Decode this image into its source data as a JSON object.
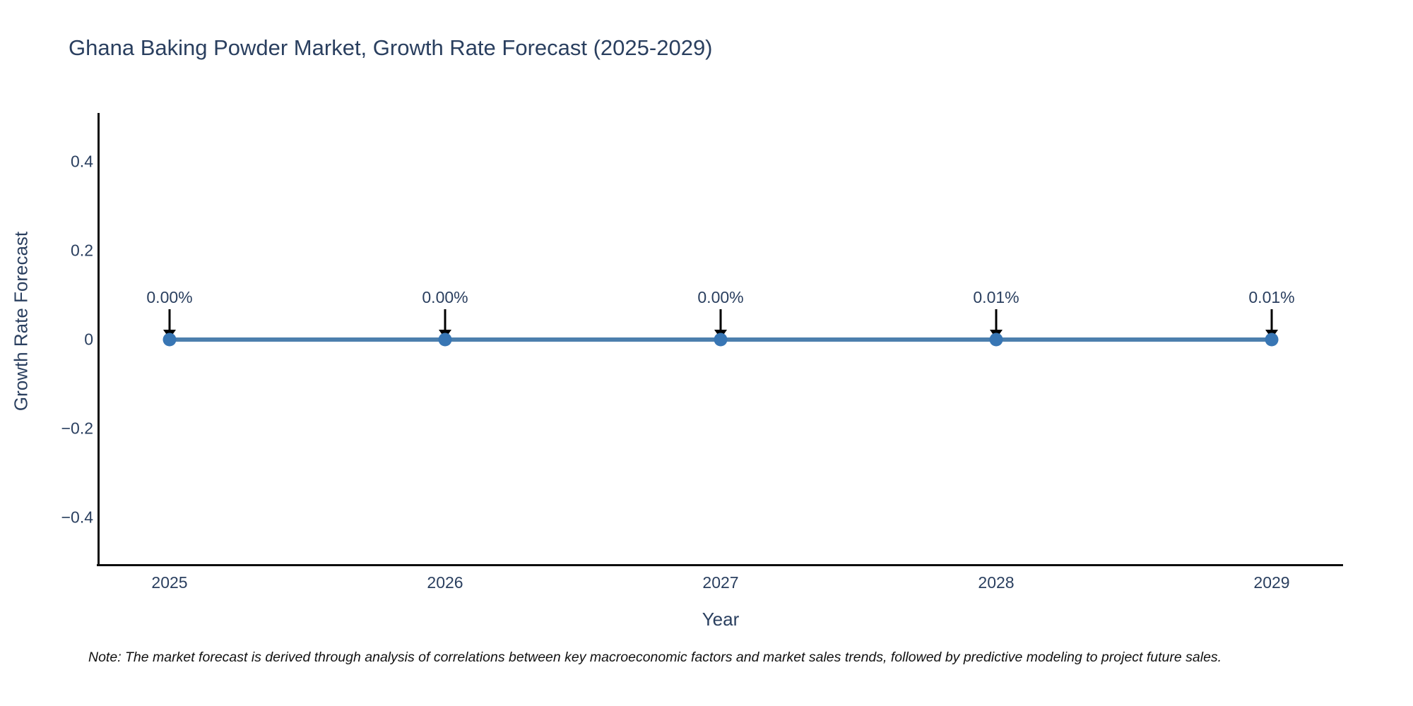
{
  "chart_data": {
    "type": "line",
    "title": "Ghana Baking Powder Market, Growth Rate Forecast (2025-2029)",
    "xlabel": "Year",
    "ylabel": "Growth Rate Forecast",
    "categories": [
      "2025",
      "2026",
      "2027",
      "2028",
      "2029"
    ],
    "series": [
      {
        "name": "Growth Rate Forecast",
        "values": [
          0.0,
          0.0,
          0.0,
          0.0001,
          0.0001
        ],
        "point_labels": [
          "0.00%",
          "0.00%",
          "0.00%",
          "0.01%",
          "0.01%"
        ]
      }
    ],
    "ylim": [
      -0.51,
      0.51
    ],
    "yticks": {
      "labels": [
        "0.4",
        "0.2",
        "0",
        "−0.2",
        "−0.4"
      ],
      "values": [
        0.4,
        0.2,
        0,
        -0.2,
        -0.4
      ]
    },
    "grid": false,
    "legend_position": "none",
    "annotation_arrows": "down-to-point"
  },
  "colors": {
    "line": "#4c7fad",
    "marker": "#3876b4",
    "axis": "#0d0d0d",
    "text": "#2a3f5f",
    "arrow": "#000000",
    "background": "#ffffff"
  },
  "footnote": "Note: The market forecast is derived through analysis of correlations between key macroeconomic factors and market sales trends, followed by predictive modeling to project future sales."
}
